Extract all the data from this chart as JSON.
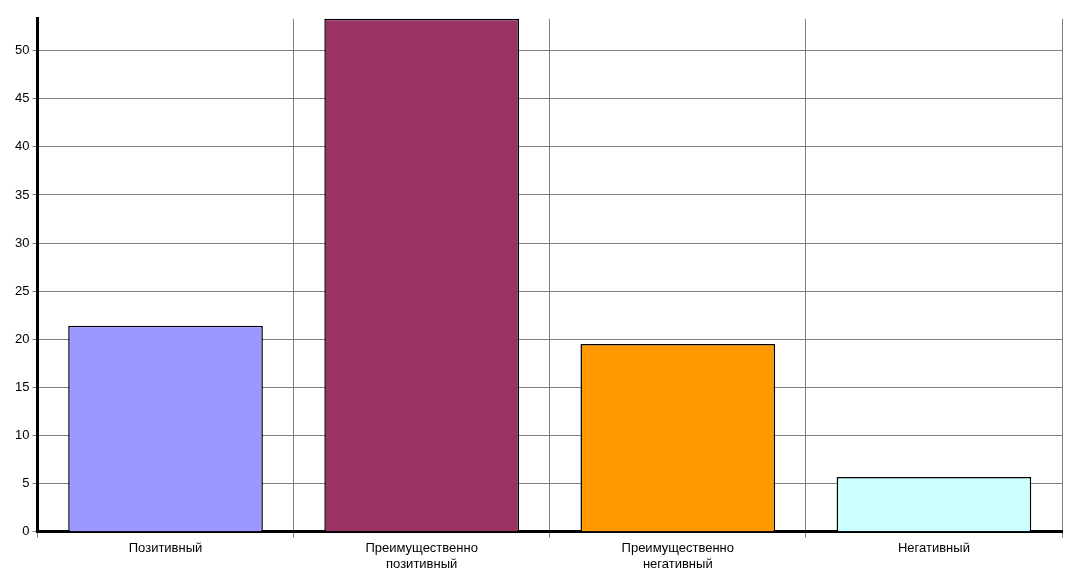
{
  "chart_data": {
    "type": "bar",
    "categories": [
      "Позитивный",
      "Преимущественно позитивный",
      "Преимущественно негативный",
      "Негативный"
    ],
    "values": [
      21.4,
      53.3,
      19.5,
      5.7
    ],
    "colors": [
      "#9999ff",
      "#993366",
      "#ff9900",
      "#ccffff"
    ],
    "ylim": [
      0,
      53.3
    ],
    "yticks": [
      0,
      5,
      10,
      15,
      20,
      25,
      30,
      35,
      40,
      45,
      50
    ],
    "grid": true,
    "legend": false
  }
}
